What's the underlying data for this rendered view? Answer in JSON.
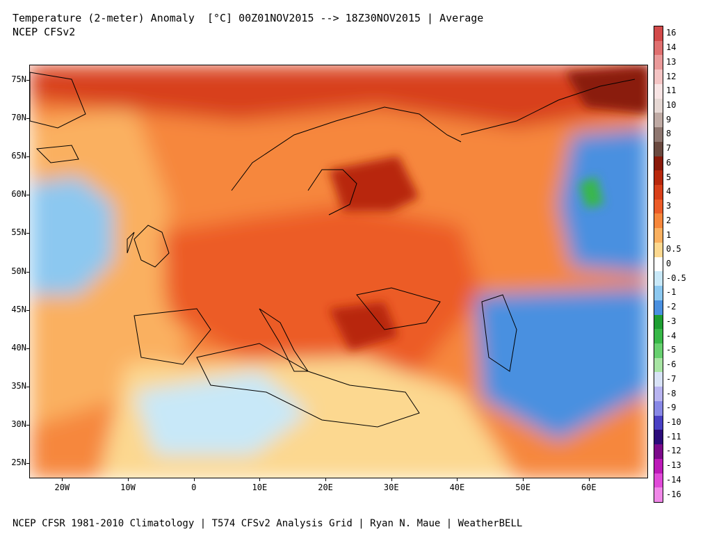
{
  "header": {
    "title": "Temperature (2-meter) Anomaly  [°C] 00Z01NOV2015 --> 18Z30NOV2015 | Average",
    "subtitle": "NCEP CFSv2"
  },
  "footer": {
    "credit": "NCEP CFSR 1981-2010 Climatology | T574 CFSv2 Analysis Grid | Ryan N. Maue | WeatherBELL"
  },
  "map": {
    "lon_range": [
      -25,
      69
    ],
    "lat_range": [
      23,
      77
    ],
    "lat_labels": [
      "75N",
      "70N",
      "65N",
      "60N",
      "55N",
      "50N",
      "45N",
      "40N",
      "35N",
      "30N",
      "25N"
    ],
    "lat_values": [
      75,
      70,
      65,
      60,
      55,
      50,
      45,
      40,
      35,
      30,
      25
    ],
    "lon_labels": [
      "20W",
      "10W",
      "0",
      "10E",
      "20E",
      "30E",
      "40E",
      "50E",
      "60E"
    ],
    "lon_values": [
      -20,
      -10,
      0,
      10,
      20,
      30,
      40,
      50,
      60
    ]
  },
  "colorbar": {
    "labels": [
      "16",
      "14",
      "13",
      "12",
      "11",
      "10",
      "9",
      "8",
      "7",
      "6",
      "5",
      "4",
      "3",
      "2",
      "1",
      "0.5",
      "0",
      "-0.5",
      "-1",
      "-2",
      "-3",
      "-4",
      "-5",
      "-6",
      "-7",
      "-8",
      "-9",
      "-10",
      "-11",
      "-12",
      "-13",
      "-14",
      "-16"
    ],
    "colors": [
      "#d24a4a",
      "#e07070",
      "#ea9a9a",
      "#f4c4c4",
      "#f8e4e4",
      "#e6d8d4",
      "#bfaaa4",
      "#8f7770",
      "#6b4a40",
      "#8a1a0a",
      "#b8280c",
      "#d8401a",
      "#ec5c28",
      "#f6873c",
      "#fab060",
      "#fcd890",
      "#ffffff",
      "#c8e8f8",
      "#8cc8f0",
      "#4a90e0",
      "#1e9e32",
      "#38b848",
      "#68d070",
      "#a8e4a4",
      "#d8e2f6",
      "#b8b4f0",
      "#8888e6",
      "#4a40c4",
      "#2c0c7a",
      "#7c0a8a",
      "#bc1ab8",
      "#e04ad8",
      "#f088e8"
    ]
  },
  "anomaly_regions": [
    {
      "name": "arctic-north",
      "color": "#d8401a"
    },
    {
      "name": "europe",
      "color": "#ec5c28"
    },
    {
      "name": "fennoscandia",
      "color": "#b8280c"
    },
    {
      "name": "balkans",
      "color": "#b8280c"
    },
    {
      "name": "atlantic",
      "color": "#fab060"
    },
    {
      "name": "atlantic-cold",
      "color": "#8cc8f0"
    },
    {
      "name": "ural-cold",
      "color": "#4a90e0"
    },
    {
      "name": "ural-core",
      "color": "#38b848"
    },
    {
      "name": "central-asia-cold",
      "color": "#4a90e0"
    },
    {
      "name": "n-africa-mixed",
      "color": "#fcd890"
    },
    {
      "name": "n-africa-cold",
      "color": "#c8e8f8"
    },
    {
      "name": "kara-sea-hot",
      "color": "#8a1a0a"
    }
  ]
}
